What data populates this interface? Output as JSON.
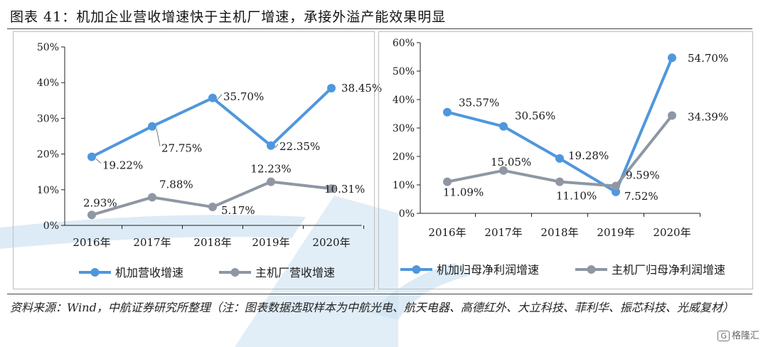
{
  "figure": {
    "title": "图表 41：机加企业营收增速快于主机厂增速，承接外溢产能效果明显",
    "source": "资料来源：Wind，中航证券研究所整理（注：图表数据选取样本为中航光电、航天电器、高德红外、大立科技、菲利华、振芯科技、光威复材）",
    "logo_text": "格隆汇",
    "logo_mark": "G"
  },
  "colors": {
    "series_a": "#4f97dd",
    "series_b": "#8e97a3",
    "axis": "#222222",
    "panel_border": "#bdbdbd"
  },
  "chart_data": [
    {
      "type": "line",
      "categories": [
        "2016年",
        "2017年",
        "2018年",
        "2019年",
        "2020年"
      ],
      "ylim": [
        0,
        50
      ],
      "yticks": [
        "0%",
        "10%",
        "20%",
        "30%",
        "40%",
        "50%"
      ],
      "grid": false,
      "legend_position": "bottom",
      "series": [
        {
          "name": "机加营收增速",
          "values": [
            19.22,
            27.75,
            35.7,
            22.35,
            38.45
          ],
          "labels": [
            "19.22%",
            "27.75%",
            "35.70%",
            "22.35%",
            "38.45%"
          ]
        },
        {
          "name": "主机厂营收增速",
          "values": [
            2.93,
            7.88,
            5.17,
            12.23,
            10.31
          ],
          "labels": [
            "2.93%",
            "7.88%",
            "5.17%",
            "12.23%",
            "10.31%"
          ]
        }
      ]
    },
    {
      "type": "line",
      "categories": [
        "2016年",
        "2017年",
        "2018年",
        "2019年",
        "2020年"
      ],
      "ylim": [
        0,
        60
      ],
      "yticks": [
        "0%",
        "10%",
        "20%",
        "30%",
        "40%",
        "50%",
        "60%"
      ],
      "grid": false,
      "legend_position": "bottom",
      "series": [
        {
          "name": "机加归母净利润增速",
          "values": [
            35.57,
            30.56,
            19.28,
            7.52,
            54.7
          ],
          "labels": [
            "35.57%",
            "30.56%",
            "19.28%",
            "7.52%",
            "54.70%"
          ]
        },
        {
          "name": "主机厂归母净利润增速",
          "values": [
            11.09,
            15.05,
            11.1,
            9.59,
            34.39
          ],
          "labels": [
            "11.09%",
            "15.05%",
            "11.10%",
            "9.59%",
            "34.39%"
          ]
        }
      ]
    }
  ]
}
